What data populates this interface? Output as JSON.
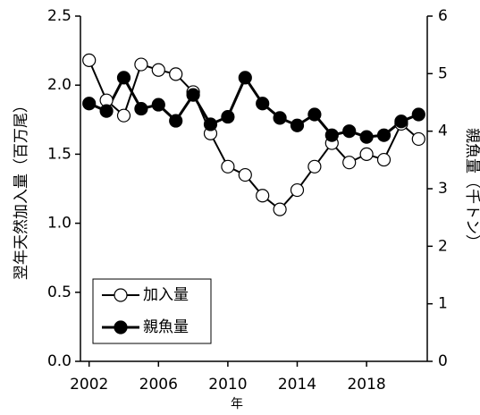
{
  "chart_data": {
    "type": "line",
    "x_label": "年",
    "y_label": "翌年天然加入量（百万尾）",
    "y2_label": "親魚量（千トン）",
    "x": [
      2002,
      2003,
      2004,
      2005,
      2006,
      2007,
      2008,
      2009,
      2010,
      2011,
      2012,
      2013,
      2014,
      2015,
      2016,
      2017,
      2018,
      2019,
      2020,
      2021
    ],
    "xlim": [
      2001.5,
      2021.5
    ],
    "xticks": [
      2002,
      2006,
      2010,
      2014,
      2018
    ],
    "ylim": [
      0,
      2.5
    ],
    "yticks": [
      {
        "value": 0,
        "label": "0.0"
      },
      0.5,
      {
        "value": 1,
        "label": "1.0"
      },
      1.5,
      {
        "value": 2,
        "label": "2.0"
      },
      2.5
    ],
    "y2lim": [
      0,
      6
    ],
    "y2ticks": [
      0,
      1,
      2,
      3,
      4,
      5,
      6
    ],
    "legend": "lower left",
    "series": [
      {
        "name": "加入量",
        "color": "#ffffff",
        "axis": "y",
        "values": [
          2.18,
          1.89,
          1.78,
          2.15,
          2.11,
          2.08,
          1.95,
          1.65,
          1.41,
          1.35,
          1.2,
          1.1,
          1.24,
          1.41,
          1.58,
          1.44,
          1.5,
          1.46,
          1.72,
          1.61
        ]
      },
      {
        "name": "親魚量",
        "color": "#000000",
        "axis": "y2",
        "values": [
          4.48,
          4.35,
          4.93,
          4.39,
          4.46,
          4.18,
          4.63,
          4.12,
          4.25,
          4.93,
          4.48,
          4.23,
          4.1,
          4.29,
          3.93,
          4.0,
          3.9,
          3.93,
          4.17,
          4.29
        ]
      }
    ]
  }
}
